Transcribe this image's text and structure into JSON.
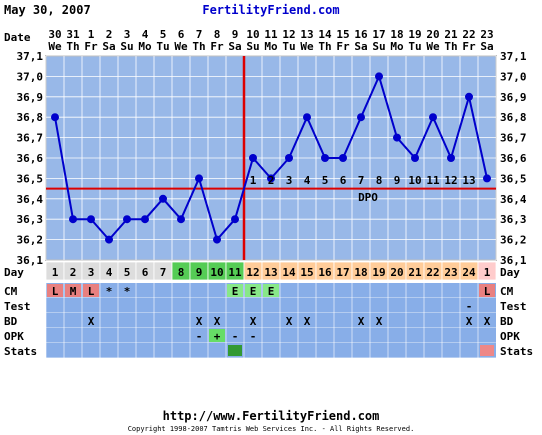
{
  "header": {
    "date": "May 30, 2007",
    "site": "FertilityFriend.com"
  },
  "footer": {
    "url": "http://www.FertilityFriend.com",
    "copyright": "Copyright 1998-2007 Tamtris Web Services Inc. - All Rights Reserved."
  },
  "labels": {
    "date": "Date",
    "day": "Day",
    "cm": "CM",
    "test": "Test",
    "bd": "BD",
    "opk": "OPK",
    "stats": "Stats",
    "dpo": "DPO"
  },
  "colors": {
    "line": "#0000cc",
    "coverline": "#dd0000",
    "plot_bg": "#98b8e8",
    "grid": "#ffffff",
    "day_grey": "#dddddd",
    "day_green": "#55cc55",
    "day_orange": "#ffcc99",
    "day_pink": "#ffcccc",
    "row_bg": "#88aee8",
    "cm_red": "#e88080",
    "cm_green": "#88e888",
    "stats_green": "#339933",
    "stats_pink": "#ee8888",
    "opk_green": "#66dd66"
  },
  "chart_data": {
    "type": "line",
    "title": "",
    "xlabel": "",
    "ylabel": "",
    "ylim": [
      36.1,
      37.1
    ],
    "yticks": [
      "37,1",
      "37,0",
      "36,9",
      "36,8",
      "36,7",
      "36,6",
      "36,5",
      "36,4",
      "36,3",
      "36,2",
      "36,1"
    ],
    "dates": [
      "30",
      "31",
      "1",
      "2",
      "3",
      "4",
      "5",
      "6",
      "7",
      "8",
      "9",
      "10",
      "11",
      "12",
      "13",
      "14",
      "15",
      "16",
      "17",
      "18",
      "19",
      "20",
      "21",
      "22",
      "23"
    ],
    "weekdays": [
      "We",
      "Th",
      "Fr",
      "Sa",
      "Su",
      "Mo",
      "Tu",
      "We",
      "Th",
      "Fr",
      "Sa",
      "Su",
      "Mo",
      "Tu",
      "We",
      "Th",
      "Fr",
      "Sa",
      "Su",
      "Mo",
      "Tu",
      "We",
      "Th",
      "Fr",
      "Sa"
    ],
    "cycle_days": [
      "1",
      "2",
      "3",
      "4",
      "5",
      "6",
      "7",
      "8",
      "9",
      "10",
      "11",
      "12",
      "13",
      "14",
      "15",
      "16",
      "17",
      "18",
      "19",
      "20",
      "21",
      "22",
      "23",
      "24",
      "1"
    ],
    "temperatures": [
      36.8,
      36.3,
      36.3,
      36.2,
      36.3,
      36.3,
      36.4,
      36.3,
      36.5,
      36.2,
      36.3,
      36.6,
      36.5,
      36.6,
      36.8,
      36.6,
      36.6,
      36.8,
      37.0,
      36.7,
      36.6,
      36.8,
      36.6,
      36.9,
      36.5
    ],
    "coverline": 36.45,
    "ovulation_day_index": 10,
    "dpo_labels": [
      "1",
      "2",
      "3",
      "4",
      "5",
      "6",
      "7",
      "8",
      "9",
      "10",
      "11",
      "12",
      "13"
    ],
    "day_colors": [
      "grey",
      "grey",
      "grey",
      "grey",
      "grey",
      "grey",
      "grey",
      "green",
      "green",
      "green",
      "green",
      "orange",
      "orange",
      "orange",
      "orange",
      "orange",
      "orange",
      "orange",
      "orange",
      "orange",
      "orange",
      "orange",
      "orange",
      "orange",
      "pink"
    ],
    "cm": [
      "L",
      "M",
      "L",
      "*",
      "*",
      "",
      "",
      "",
      "",
      "",
      "E",
      "E",
      "E",
      "",
      "",
      "",
      "",
      "",
      "",
      "",
      "",
      "",
      "",
      "",
      "L"
    ],
    "cm_colors": [
      "red",
      "red",
      "red",
      "",
      "",
      "",
      "",
      "",
      "",
      "",
      "green",
      "green",
      "green",
      "",
      "",
      "",
      "",
      "",
      "",
      "",
      "",
      "",
      "",
      "",
      "red"
    ],
    "test": [
      "",
      "",
      "",
      "",
      "",
      "",
      "",
      "",
      "",
      "",
      "",
      "",
      "",
      "",
      "",
      "",
      "",
      "",
      "",
      "",
      "",
      "",
      "",
      "-",
      ""
    ],
    "bd": [
      "",
      "",
      "X",
      "",
      "",
      "",
      "",
      "",
      "X",
      "X",
      "",
      "X",
      "",
      "X",
      "X",
      "",
      "",
      "X",
      "X",
      "",
      "",
      "",
      "",
      "X",
      "X"
    ],
    "opk": [
      "",
      "",
      "",
      "",
      "",
      "",
      "",
      "",
      "-",
      "+",
      "-",
      "-",
      "",
      "",
      "",
      "",
      "",
      "",
      "",
      "",
      "",
      "",
      "",
      "",
      ""
    ],
    "opk_colors": [
      "",
      "",
      "",
      "",
      "",
      "",
      "",
      "",
      "",
      "green",
      "",
      "",
      "",
      "",
      "",
      "",
      "",
      "",
      "",
      "",
      "",
      "",
      "",
      "",
      ""
    ],
    "stats": [
      "",
      "",
      "",
      "",
      "",
      "",
      "",
      "",
      "",
      "",
      "green",
      "",
      "",
      "",
      "",
      "",
      "",
      "",
      "",
      "",
      "",
      "",
      "",
      "",
      "pink"
    ]
  }
}
